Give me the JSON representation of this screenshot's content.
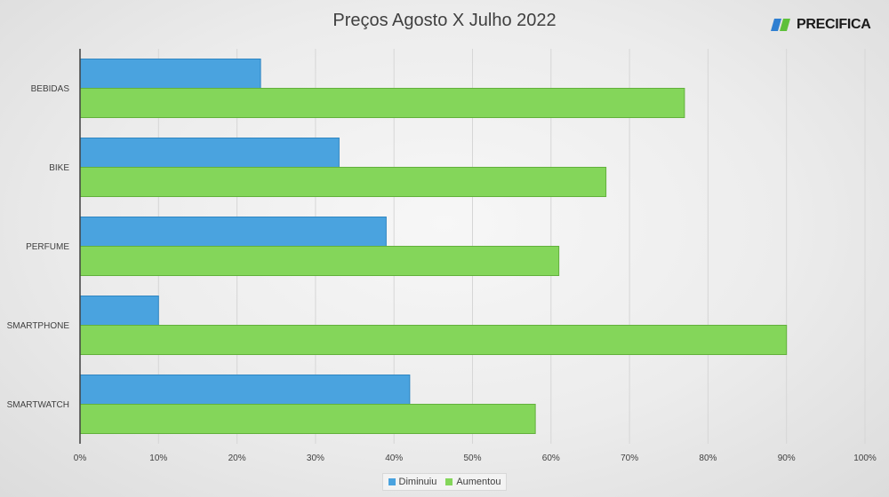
{
  "chart_data": {
    "type": "bar",
    "orientation": "horizontal",
    "title": "Preços Agosto X Julho 2022",
    "categories": [
      "BEBIDAS",
      "BIKE",
      "PERFUME",
      "SMARTPHONE",
      "SMARTWATCH"
    ],
    "series": [
      {
        "name": "Diminuiu",
        "color": "#4aa3df",
        "values": [
          23,
          33,
          39,
          10,
          42
        ]
      },
      {
        "name": "Aumentou",
        "color": "#84d65a",
        "values": [
          77,
          67,
          61,
          90,
          58
        ]
      }
    ],
    "xlim": [
      0,
      100
    ],
    "x_ticks": [
      "0%",
      "10%",
      "20%",
      "30%",
      "40%",
      "50%",
      "60%",
      "70%",
      "80%",
      "90%",
      "100%"
    ],
    "grid": true,
    "legend_position": "bottom"
  },
  "brand": {
    "name": "PRECIFICA"
  }
}
